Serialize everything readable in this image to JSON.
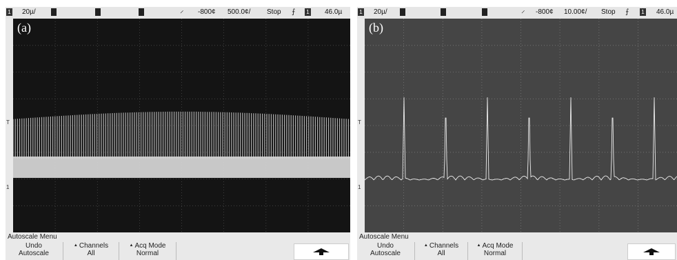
{
  "scopes": [
    {
      "id": "a",
      "label": "(a)",
      "status": {
        "channel": "1",
        "volts_per_div": "20µ/",
        "trigger_delay": "-800¢",
        "time_per_div": "500.0¢/",
        "run_state": "Stop",
        "trigger_level": "46.0µ",
        "trigger_channel": "1"
      },
      "menu_title": "Autoscale Menu",
      "softkeys": [
        {
          "line1": "Undo",
          "line2": "Autoscale"
        },
        {
          "line1": "Channels",
          "line2": "All"
        },
        {
          "line1": "Acq Mode",
          "line2": "Normal"
        }
      ],
      "ground_marker": "1",
      "trig_marker": "T",
      "colors": {
        "screen": "#141414",
        "grid": "#4a4a4a",
        "trace": "#d8d8d8"
      },
      "icons": {
        "trigger": "trigger-icon",
        "slope": "rising-edge-icon",
        "softkey_arrow": "up-arrow-icon"
      }
    },
    {
      "id": "b",
      "label": "(b)",
      "status": {
        "channel": "1",
        "volts_per_div": "20µ/",
        "trigger_delay": "-800¢",
        "time_per_div": "10.00¢/",
        "run_state": "Stop",
        "trigger_level": "46.0µ",
        "trigger_channel": "1"
      },
      "menu_title": "Autoscale Menu",
      "softkeys": [
        {
          "line1": "Undo",
          "line2": "Autoscale"
        },
        {
          "line1": "Channels",
          "line2": "All"
        },
        {
          "line1": "Acq Mode",
          "line2": "Normal"
        }
      ],
      "ground_marker": "1",
      "trig_marker": "T",
      "colors": {
        "screen": "#454545",
        "grid": "#7a7a7a",
        "trace": "#eeeeee"
      },
      "icons": {
        "trigger": "trigger-icon",
        "slope": "rising-edge-icon",
        "softkey_arrow": "up-arrow-icon"
      }
    }
  ]
}
